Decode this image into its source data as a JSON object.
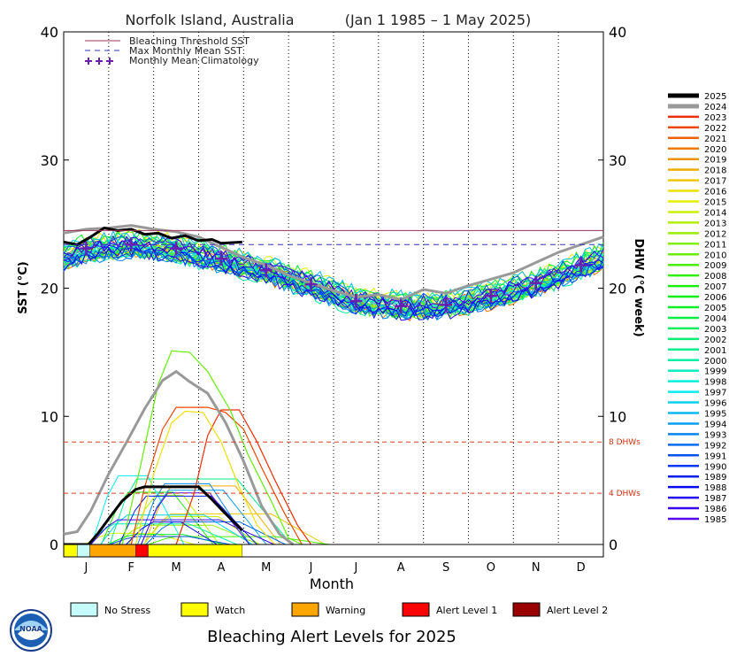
{
  "chart_data": {
    "type": "line",
    "title": "Norfolk Island, Australia",
    "date_range": "(Jan 1 1985 – 1 May 2025)",
    "xlabel": "Month",
    "ylabel_left": "SST (°C)",
    "ylabel_right": "DHW (°C week)",
    "months": [
      "J",
      "F",
      "M",
      "A",
      "M",
      "J",
      "J",
      "A",
      "S",
      "O",
      "N",
      "D"
    ],
    "yticks": [
      "0",
      "10",
      "20",
      "30",
      "40"
    ],
    "ylim": [
      0,
      40
    ],
    "grid": "vertical dotted month lines",
    "legend_top": {
      "placement": "top-left",
      "items": [
        {
          "label": "Bleaching Threshold SST",
          "style": "solid",
          "color": "#a0305a"
        },
        {
          "label": "Max Monthly Mean SST",
          "style": "dashed",
          "color": "#3030c0"
        },
        {
          "label": "Monthly Mean Climatology",
          "style": "crosses",
          "color": "#6a1fb0"
        }
      ]
    },
    "bleaching_threshold_sst": 24.5,
    "max_monthly_mean_sst": 23.4,
    "climatology": [
      {
        "x": 0.5,
        "y": 23.1
      },
      {
        "x": 1.5,
        "y": 23.4
      },
      {
        "x": 2.5,
        "y": 23.1
      },
      {
        "x": 3.5,
        "y": 22.3
      },
      {
        "x": 4.5,
        "y": 21.4
      },
      {
        "x": 5.5,
        "y": 20.3
      },
      {
        "x": 6.5,
        "y": 19.0
      },
      {
        "x": 7.5,
        "y": 18.6
      },
      {
        "x": 8.5,
        "y": 18.7
      },
      {
        "x": 9.5,
        "y": 19.4
      },
      {
        "x": 10.5,
        "y": 20.4
      },
      {
        "x": 11.5,
        "y": 21.8
      }
    ],
    "dhw_reference_lines": [
      {
        "value": 8,
        "label": "8 DHWs"
      },
      {
        "value": 4,
        "label": "4 DHWs"
      }
    ],
    "years": [
      "2025",
      "2024",
      "2023",
      "2022",
      "2021",
      "2020",
      "2019",
      "2018",
      "2017",
      "2016",
      "2015",
      "2014",
      "2013",
      "2012",
      "2011",
      "2010",
      "2009",
      "2008",
      "2007",
      "2006",
      "2005",
      "2004",
      "2003",
      "2002",
      "2001",
      "2000",
      "1999",
      "1998",
      "1997",
      "1996",
      "1995",
      "1994",
      "1993",
      "1992",
      "1991",
      "1990",
      "1989",
      "1988",
      "1987",
      "1986",
      "1985"
    ],
    "sst_2025": [
      {
        "x": 0.0,
        "y": 23.6
      },
      {
        "x": 0.3,
        "y": 23.4
      },
      {
        "x": 0.6,
        "y": 24.0
      },
      {
        "x": 0.9,
        "y": 24.7
      },
      {
        "x": 1.2,
        "y": 24.5
      },
      {
        "x": 1.5,
        "y": 24.6
      },
      {
        "x": 1.8,
        "y": 24.2
      },
      {
        "x": 2.1,
        "y": 24.3
      },
      {
        "x": 2.4,
        "y": 23.9
      },
      {
        "x": 2.7,
        "y": 24.1
      },
      {
        "x": 3.0,
        "y": 23.7
      },
      {
        "x": 3.3,
        "y": 23.8
      },
      {
        "x": 3.5,
        "y": 23.5
      },
      {
        "x": 3.97,
        "y": 23.6
      }
    ],
    "sst_2024": [
      {
        "x": 0.0,
        "y": 24.3
      },
      {
        "x": 0.5,
        "y": 24.6
      },
      {
        "x": 1.0,
        "y": 24.7
      },
      {
        "x": 1.5,
        "y": 24.9
      },
      {
        "x": 2.0,
        "y": 24.6
      },
      {
        "x": 2.5,
        "y": 24.4
      },
      {
        "x": 3.0,
        "y": 24.0
      },
      {
        "x": 3.5,
        "y": 23.2
      },
      {
        "x": 4.0,
        "y": 22.4
      },
      {
        "x": 4.5,
        "y": 21.8
      },
      {
        "x": 5.0,
        "y": 21.0
      },
      {
        "x": 5.5,
        "y": 20.4
      },
      {
        "x": 6.0,
        "y": 19.8
      },
      {
        "x": 6.5,
        "y": 19.3
      },
      {
        "x": 7.0,
        "y": 19.5
      },
      {
        "x": 7.5,
        "y": 19.1
      },
      {
        "x": 8.0,
        "y": 19.9
      },
      {
        "x": 8.5,
        "y": 19.6
      },
      {
        "x": 9.0,
        "y": 20.2
      },
      {
        "x": 9.5,
        "y": 20.7
      },
      {
        "x": 10.0,
        "y": 21.2
      },
      {
        "x": 10.5,
        "y": 22.0
      },
      {
        "x": 11.0,
        "y": 22.8
      },
      {
        "x": 11.5,
        "y": 23.4
      },
      {
        "x": 12.0,
        "y": 24.0
      }
    ],
    "dhw_2025": [
      {
        "x": 0.0,
        "y": 0.0
      },
      {
        "x": 0.55,
        "y": 0.0
      },
      {
        "x": 0.75,
        "y": 0.8
      },
      {
        "x": 1.0,
        "y": 2.0
      },
      {
        "x": 1.3,
        "y": 3.4
      },
      {
        "x": 1.6,
        "y": 4.3
      },
      {
        "x": 1.8,
        "y": 4.5
      },
      {
        "x": 2.7,
        "y": 4.5
      },
      {
        "x": 3.0,
        "y": 4.5
      },
      {
        "x": 3.3,
        "y": 3.5
      },
      {
        "x": 3.6,
        "y": 2.4
      },
      {
        "x": 3.97,
        "y": 1.1
      }
    ],
    "dhw_2024": [
      {
        "x": 0.0,
        "y": 0.8
      },
      {
        "x": 0.3,
        "y": 1.0
      },
      {
        "x": 0.6,
        "y": 2.6
      },
      {
        "x": 1.0,
        "y": 5.5
      },
      {
        "x": 1.4,
        "y": 8.0
      },
      {
        "x": 1.8,
        "y": 10.6
      },
      {
        "x": 2.2,
        "y": 12.8
      },
      {
        "x": 2.5,
        "y": 13.5
      },
      {
        "x": 2.8,
        "y": 12.7
      },
      {
        "x": 3.2,
        "y": 11.8
      },
      {
        "x": 3.6,
        "y": 9.5
      },
      {
        "x": 4.0,
        "y": 6.5
      },
      {
        "x": 4.4,
        "y": 3.0
      },
      {
        "x": 4.8,
        "y": 0.8
      },
      {
        "x": 5.1,
        "y": 0.0
      }
    ],
    "dhw_2023": [
      {
        "x": 2.5,
        "y": 0.0
      },
      {
        "x": 2.9,
        "y": 4.0
      },
      {
        "x": 3.2,
        "y": 8.5
      },
      {
        "x": 3.5,
        "y": 10.5
      },
      {
        "x": 3.9,
        "y": 10.5
      },
      {
        "x": 4.3,
        "y": 8.0
      },
      {
        "x": 4.7,
        "y": 5.0
      },
      {
        "x": 5.2,
        "y": 1.5
      },
      {
        "x": 5.5,
        "y": 0.0
      }
    ],
    "dhw_2022": [
      {
        "x": 1.5,
        "y": 0.0
      },
      {
        "x": 1.8,
        "y": 4.5
      },
      {
        "x": 2.2,
        "y": 9.0
      },
      {
        "x": 2.5,
        "y": 10.7
      },
      {
        "x": 3.2,
        "y": 10.7
      },
      {
        "x": 3.6,
        "y": 10.3
      },
      {
        "x": 4.0,
        "y": 9.0
      },
      {
        "x": 4.4,
        "y": 6.0
      },
      {
        "x": 4.9,
        "y": 2.5
      },
      {
        "x": 5.3,
        "y": 0.0
      }
    ],
    "dhw_2016": [
      {
        "x": 1.6,
        "y": 0.0
      },
      {
        "x": 2.0,
        "y": 5.5
      },
      {
        "x": 2.4,
        "y": 9.5
      },
      {
        "x": 2.7,
        "y": 10.4
      },
      {
        "x": 3.1,
        "y": 10.3
      },
      {
        "x": 3.5,
        "y": 8.0
      },
      {
        "x": 3.9,
        "y": 4.5
      },
      {
        "x": 4.3,
        "y": 1.5
      },
      {
        "x": 4.7,
        "y": 0.0
      }
    ],
    "dhw_2010": [
      {
        "x": 1.3,
        "y": 0.0
      },
      {
        "x": 1.7,
        "y": 6.0
      },
      {
        "x": 2.1,
        "y": 12.5
      },
      {
        "x": 2.4,
        "y": 15.1
      },
      {
        "x": 2.8,
        "y": 15.0
      },
      {
        "x": 3.2,
        "y": 13.5
      },
      {
        "x": 3.7,
        "y": 10.5
      },
      {
        "x": 4.1,
        "y": 7.0
      },
      {
        "x": 4.6,
        "y": 3.5
      },
      {
        "x": 5.0,
        "y": 0.5
      },
      {
        "x": 5.3,
        "y": 0.0
      }
    ],
    "alert_bar_2025": [
      {
        "from": 0.0,
        "to": 0.3,
        "level": "Watch"
      },
      {
        "from": 0.3,
        "to": 0.58,
        "level": "No Stress"
      },
      {
        "from": 0.58,
        "to": 1.6,
        "level": "Warning"
      },
      {
        "from": 1.6,
        "to": 1.88,
        "level": "Alert Level 1"
      },
      {
        "from": 1.88,
        "to": 3.97,
        "level": "Watch"
      }
    ]
  },
  "bottom_legend": [
    {
      "label": "No Stress",
      "color": "#c6fbfb"
    },
    {
      "label": "Watch",
      "color": "#ffff00"
    },
    {
      "label": "Warning",
      "color": "#ffa500"
    },
    {
      "label": "Alert Level 1",
      "color": "#ff0000"
    },
    {
      "label": "Alert Level 2",
      "color": "#990000"
    }
  ],
  "footer_title": "Bleaching Alert Levels for 2025",
  "logo_text": "NOAA"
}
